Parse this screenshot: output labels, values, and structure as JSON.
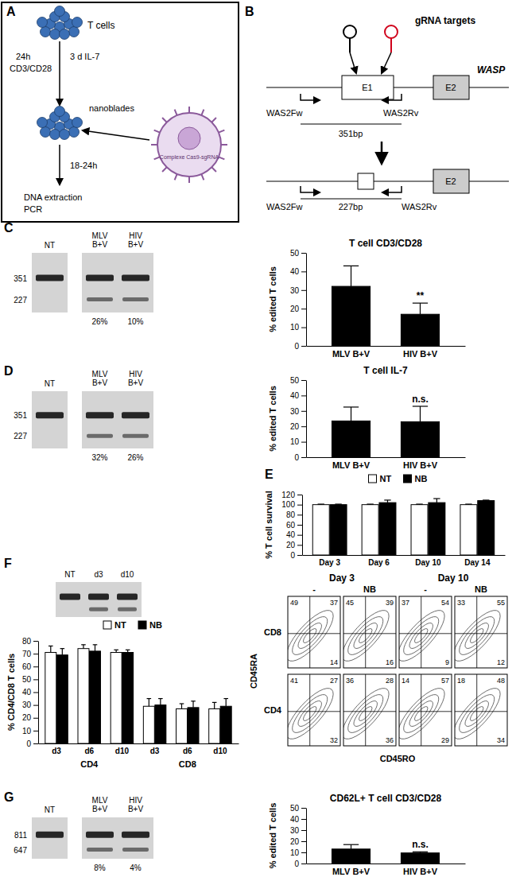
{
  "panels": {
    "labels": [
      "A",
      "B",
      "C",
      "D",
      "E",
      "F",
      "G"
    ]
  },
  "diagram_a": {
    "t_cells": "T cells",
    "step1_time": "24h",
    "step1_stim": "CD3/CD28",
    "step2": "3 d IL-7",
    "nanoblades": "nanoblades",
    "particle": "Complexe Cas9-sgRNA",
    "step3": "18-24h",
    "readout": [
      "DNA extraction",
      "PCR"
    ]
  },
  "diagram_b": {
    "title": "gRNA targets",
    "gene": "WASP",
    "exon1": "E1",
    "exon2": "E2",
    "primer_fw": "WAS2Fw",
    "primer_rv": "WAS2Rv",
    "amplicon": "351bp",
    "edited_amplicon": "227bp"
  },
  "gels": {
    "C": {
      "lanes": [
        "NT",
        "MLV B+V",
        "HIV B+V"
      ],
      "bands": [
        "351",
        "227"
      ],
      "percentages": [
        "26%",
        "10%"
      ]
    },
    "D": {
      "lanes": [
        "NT",
        "MLV B+V",
        "HIV B+V"
      ],
      "bands": [
        "351",
        "227"
      ],
      "percentages": [
        "32%",
        "26%"
      ]
    },
    "F": {
      "lanes": [
        "NT",
        "d3",
        "d10"
      ]
    },
    "G": {
      "lanes": [
        "NT",
        "MLV B+V",
        "HIV B+V"
      ],
      "bands": [
        "811",
        "647"
      ],
      "percentages": [
        "8%",
        "4%"
      ]
    }
  },
  "flow": {
    "columns": [
      {
        "header": "Day 3",
        "conditions": [
          "-",
          "NB"
        ]
      },
      {
        "header": "Day 10",
        "conditions": [
          "-",
          "NB"
        ]
      }
    ],
    "rows": [
      {
        "label": "CD8",
        "quadrants": [
          [
            49,
            37,
            14
          ],
          [
            45,
            39,
            16
          ],
          [
            37,
            54,
            9
          ],
          [
            33,
            55,
            12
          ]
        ]
      },
      {
        "label": "CD4",
        "quadrants": [
          [
            41,
            27,
            32
          ],
          [
            36,
            28,
            36
          ],
          [
            14,
            57,
            29
          ],
          [
            18,
            48,
            34
          ]
        ]
      }
    ],
    "y_label": "CD45RA",
    "x_label": "CD45RO"
  },
  "chart_data": [
    {
      "type": "bar",
      "title": "T cell CD3/CD28",
      "y_label": "% edited T cells",
      "categories": [
        "MLV B+V",
        "HIV B+V"
      ],
      "values": [
        32,
        17
      ],
      "errors": [
        11,
        6
      ],
      "color": "#000000",
      "ylim": [
        0,
        50
      ],
      "yticks": [
        0,
        10,
        20,
        30,
        40,
        50
      ],
      "annotation": "**",
      "annotation_category": "HIV B+V"
    },
    {
      "type": "bar",
      "title": "T cell IL-7",
      "y_label": "% edited T cells",
      "categories": [
        "MLV B+V",
        "HIV B+V"
      ],
      "values": [
        23.5,
        23
      ],
      "errors": [
        9,
        10
      ],
      "color": "#000000",
      "ylim": [
        0,
        50
      ],
      "yticks": [
        0,
        10,
        20,
        30,
        40,
        50
      ],
      "annotation": "n.s.",
      "annotation_category": "HIV B+V"
    },
    {
      "type": "bar",
      "y_label": "% T cell survival",
      "categories": [
        "Day 3",
        "Day 6",
        "Day 10",
        "Day 14"
      ],
      "series": [
        {
          "name": "NT",
          "color": "#ffffff",
          "values": [
            100,
            100,
            100,
            100
          ],
          "errors": [
            1,
            1,
            1,
            1
          ]
        },
        {
          "name": "NB",
          "color": "#000000",
          "values": [
            100,
            104,
            104,
            108
          ],
          "errors": [
            1,
            5,
            8,
            1
          ]
        }
      ],
      "ylim": [
        0,
        120
      ],
      "yticks": [
        0,
        20,
        40,
        60,
        80,
        100,
        120
      ],
      "legend": "top"
    },
    {
      "type": "bar",
      "y_label": "% CD4/CD8 T cells",
      "categories": [
        "d3",
        "d6",
        "d10",
        "d3",
        "d6",
        "d10"
      ],
      "group_labels": [
        "CD4",
        "CD8"
      ],
      "series": [
        {
          "name": "NT",
          "color": "#ffffff",
          "values": [
            71,
            74,
            71,
            29,
            27,
            27
          ],
          "errors": [
            5,
            3,
            2,
            6,
            4,
            5
          ]
        },
        {
          "name": "NB",
          "color": "#000000",
          "values": [
            69,
            72,
            71,
            30,
            28,
            29
          ],
          "errors": [
            5,
            5,
            2,
            5,
            5,
            6
          ]
        }
      ],
      "ylim": [
        0,
        80
      ],
      "yticks": [
        0,
        10,
        20,
        30,
        40,
        50,
        60,
        70,
        80
      ],
      "legend": "top"
    },
    {
      "type": "bar",
      "title": "CD62L+ T cell CD3/CD28",
      "y_label": "% edited T cells",
      "categories": [
        "MLV B+V",
        "HIV B+V"
      ],
      "values": [
        13,
        9.5
      ],
      "errors": [
        4,
        1
      ],
      "color": "#000000",
      "ylim": [
        0,
        50
      ],
      "yticks": [
        0,
        10,
        20,
        30,
        40,
        50
      ],
      "annotation": "n.s.",
      "annotation_category": "HIV B+V"
    }
  ]
}
